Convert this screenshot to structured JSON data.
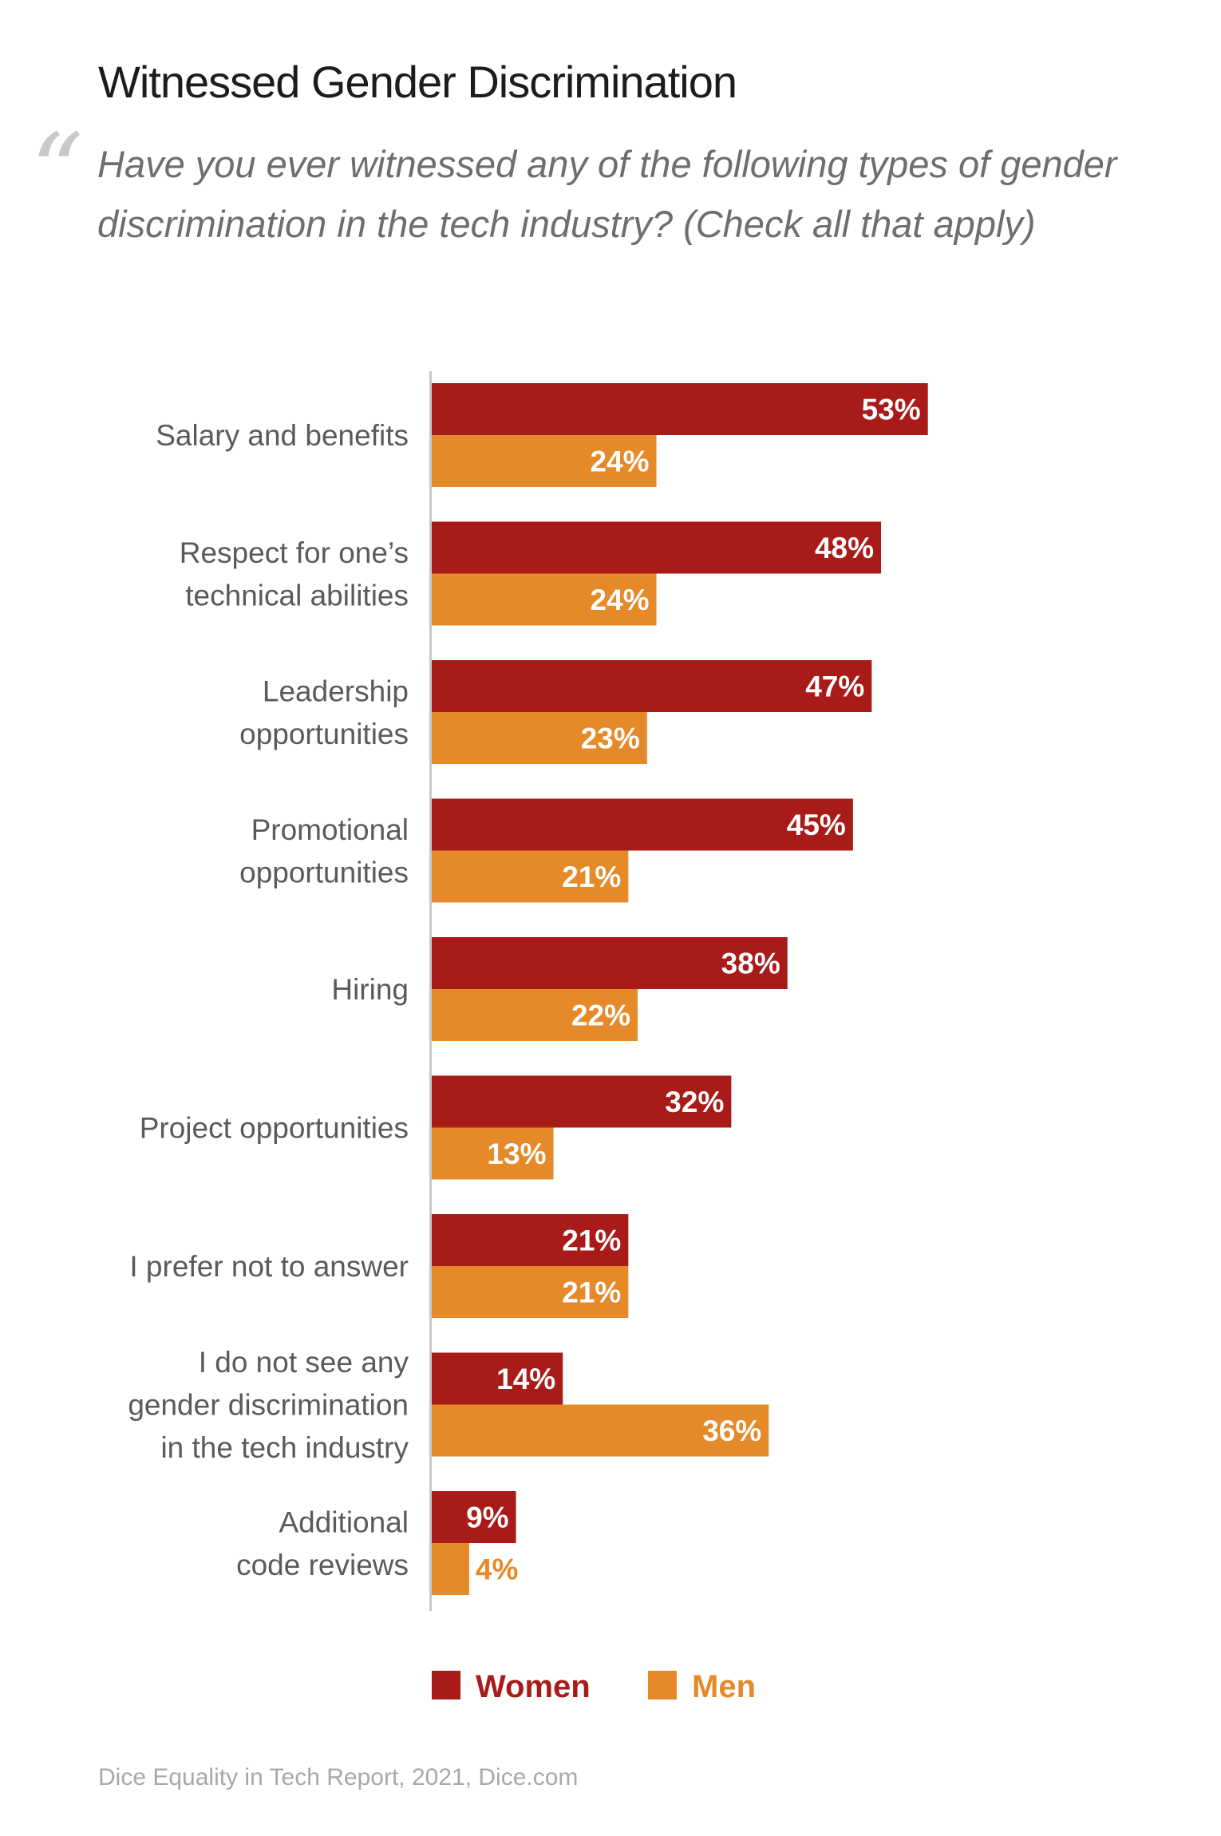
{
  "title": "Witnessed Gender Discrimination",
  "quote_mark": "“",
  "subtitle": "Have you ever witnessed any of the following types of gender discrimination in the tech industry? (Check all that apply)",
  "source": "Dice Equality in Tech Report, 2021, Dice.com",
  "colors": {
    "women": "#a81b18",
    "men": "#e68a29"
  },
  "chart_data": {
    "type": "bar",
    "orientation": "horizontal",
    "categories": [
      [
        "Salary and benefits"
      ],
      [
        "Respect for one’s",
        "technical abilities"
      ],
      [
        "Leadership",
        "opportunities"
      ],
      [
        "Promotional",
        "opportunities"
      ],
      [
        "Hiring"
      ],
      [
        "Project opportunities"
      ],
      [
        "I prefer not to answer"
      ],
      [
        "I do not see any",
        "gender discrimination",
        "in the tech industry"
      ],
      [
        "Additional",
        "code reviews"
      ]
    ],
    "series": [
      {
        "name": "Women",
        "color": "#a81b18",
        "values": [
          53,
          48,
          47,
          45,
          38,
          32,
          21,
          14,
          9
        ],
        "labels": [
          "53%",
          "48%",
          "47%",
          "45%",
          "38%",
          "32%",
          "21%",
          "14%",
          "9%"
        ]
      },
      {
        "name": "Men",
        "color": "#e68a29",
        "values": [
          24,
          24,
          23,
          21,
          22,
          13,
          21,
          36,
          4
        ],
        "labels": [
          "24%",
          "24%",
          "23%",
          "21%",
          "22%",
          "13%",
          "21%",
          "36%",
          "4%"
        ]
      }
    ],
    "value_unit": "%",
    "xlim": [
      0,
      100
    ],
    "grid": false,
    "legend_position": "bottom"
  }
}
